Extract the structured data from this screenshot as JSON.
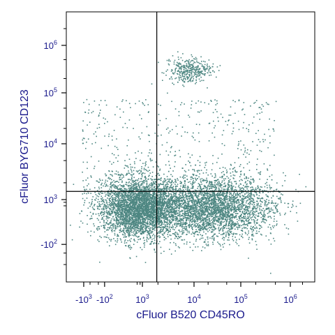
{
  "chart_data": {
    "type": "scatter",
    "xlabel": "cFluor B520 CD45RO",
    "ylabel": "cFluor BYG710 CD123",
    "x_ticks": [
      {
        "value": -1000,
        "base": "-10",
        "exp": "3"
      },
      {
        "value": -100,
        "base": "-10",
        "exp": "2"
      },
      {
        "value": 1000,
        "base": "10",
        "exp": "3"
      },
      {
        "value": 10000,
        "base": "10",
        "exp": "4"
      },
      {
        "value": 100000,
        "base": "10",
        "exp": "5"
      },
      {
        "value": 1000000,
        "base": "10",
        "exp": "6"
      }
    ],
    "y_ticks": [
      {
        "value": -100,
        "base": "-10",
        "exp": "2"
      },
      {
        "value": 1000,
        "base": "10",
        "exp": "3"
      },
      {
        "value": 10000,
        "base": "10",
        "exp": "4"
      },
      {
        "value": 100000,
        "base": "10",
        "exp": "5"
      },
      {
        "value": 1000000,
        "base": "10",
        "exp": "6"
      }
    ],
    "scale": "biexponential",
    "xlim": [
      -2000,
      4000000
    ],
    "ylim": [
      -2000,
      4000000
    ],
    "quadrant_gate": {
      "x": 1900,
      "y": 1400
    },
    "point_color": "#4e8782",
    "populations": [
      {
        "x": 250,
        "y": 150,
        "fraction": 0.4
      },
      {
        "x": 22000,
        "y": 150,
        "fraction": 0.38
      },
      {
        "x": 8000,
        "y": 300000,
        "fraction": 0.04
      },
      {
        "x": 3000,
        "y": 2500,
        "fraction": 0.18
      }
    ]
  }
}
